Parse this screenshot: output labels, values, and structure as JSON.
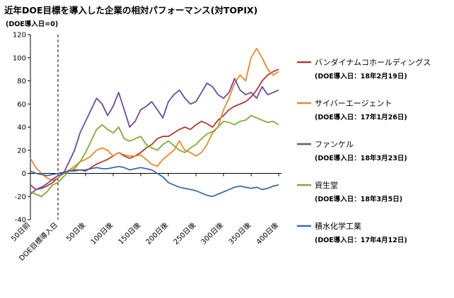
{
  "chart_data": {
    "type": "line",
    "title": "近年DOE目標を導入した企業の相対パフォーマンス(対TOPIX)",
    "ylabel": "(DOE導入日=0)",
    "ylim": [
      -40,
      120
    ],
    "yticks": [
      -40,
      -20,
      0,
      20,
      40,
      60,
      80,
      100,
      120
    ],
    "xlim": [
      -50,
      405
    ],
    "xtick_values": [
      -50,
      0,
      50,
      100,
      150,
      200,
      250,
      300,
      350,
      400
    ],
    "xtick_labels": [
      "50日前",
      "DOE目標導入日",
      "50日後",
      "100日後",
      "150日後",
      "200日後",
      "250日後",
      "300日後",
      "350日後",
      "400日後"
    ],
    "event_line_x": 0,
    "series": [
      {
        "name": "バンダイナムコホールディングス",
        "note": "(DOE導入日：18年2月19日)",
        "color": "#b03a2e",
        "points": [
          [
            -50,
            -10
          ],
          [
            -40,
            -14
          ],
          [
            -30,
            -13
          ],
          [
            -20,
            -11
          ],
          [
            -10,
            -8
          ],
          [
            0,
            -4
          ],
          [
            10,
            0
          ],
          [
            20,
            2
          ],
          [
            30,
            3
          ],
          [
            40,
            3
          ],
          [
            50,
            2
          ],
          [
            60,
            5
          ],
          [
            70,
            8
          ],
          [
            80,
            10
          ],
          [
            90,
            12
          ],
          [
            100,
            15
          ],
          [
            110,
            18
          ],
          [
            120,
            15
          ],
          [
            130,
            13
          ],
          [
            140,
            15
          ],
          [
            150,
            18
          ],
          [
            160,
            22
          ],
          [
            170,
            25
          ],
          [
            180,
            30
          ],
          [
            190,
            32
          ],
          [
            200,
            32
          ],
          [
            210,
            35
          ],
          [
            220,
            38
          ],
          [
            230,
            40
          ],
          [
            240,
            38
          ],
          [
            250,
            42
          ],
          [
            260,
            45
          ],
          [
            270,
            43
          ],
          [
            280,
            40
          ],
          [
            290,
            46
          ],
          [
            300,
            50
          ],
          [
            310,
            55
          ],
          [
            320,
            58
          ],
          [
            330,
            60
          ],
          [
            340,
            62
          ],
          [
            350,
            66
          ],
          [
            360,
            72
          ],
          [
            370,
            80
          ],
          [
            380,
            85
          ],
          [
            390,
            88
          ],
          [
            400,
            90
          ]
        ]
      },
      {
        "name": "サイバーエージェント",
        "note": "(DOE導入日：17年1月26日)",
        "color": "#e8892e",
        "points": [
          [
            -50,
            13
          ],
          [
            -40,
            5
          ],
          [
            -30,
            0
          ],
          [
            -20,
            -4
          ],
          [
            -10,
            -6
          ],
          [
            0,
            -4
          ],
          [
            10,
            0
          ],
          [
            20,
            3
          ],
          [
            30,
            6
          ],
          [
            40,
            10
          ],
          [
            50,
            12
          ],
          [
            60,
            15
          ],
          [
            70,
            20
          ],
          [
            80,
            22
          ],
          [
            90,
            20
          ],
          [
            100,
            15
          ],
          [
            110,
            18
          ],
          [
            120,
            16
          ],
          [
            130,
            15
          ],
          [
            140,
            15
          ],
          [
            150,
            16
          ],
          [
            160,
            12
          ],
          [
            170,
            8
          ],
          [
            180,
            6
          ],
          [
            190,
            12
          ],
          [
            200,
            16
          ],
          [
            210,
            20
          ],
          [
            220,
            28
          ],
          [
            230,
            20
          ],
          [
            240,
            18
          ],
          [
            250,
            15
          ],
          [
            260,
            18
          ],
          [
            270,
            25
          ],
          [
            280,
            35
          ],
          [
            290,
            40
          ],
          [
            300,
            55
          ],
          [
            310,
            65
          ],
          [
            320,
            78
          ],
          [
            330,
            85
          ],
          [
            340,
            80
          ],
          [
            350,
            100
          ],
          [
            360,
            108
          ],
          [
            370,
            100
          ],
          [
            380,
            90
          ],
          [
            390,
            85
          ],
          [
            400,
            88
          ]
        ]
      },
      {
        "name": "ファンケル",
        "note": "(DOE導入日：18年3月23日)",
        "color": "#6b4c9a",
        "points": [
          [
            -50,
            -18
          ],
          [
            -40,
            -14
          ],
          [
            -30,
            -12
          ],
          [
            -20,
            -9
          ],
          [
            -10,
            -5
          ],
          [
            0,
            -2
          ],
          [
            10,
            0
          ],
          [
            20,
            10
          ],
          [
            30,
            20
          ],
          [
            40,
            35
          ],
          [
            50,
            45
          ],
          [
            60,
            55
          ],
          [
            70,
            65
          ],
          [
            80,
            60
          ],
          [
            90,
            50
          ],
          [
            100,
            58
          ],
          [
            110,
            70
          ],
          [
            120,
            55
          ],
          [
            130,
            40
          ],
          [
            140,
            45
          ],
          [
            150,
            55
          ],
          [
            160,
            58
          ],
          [
            170,
            62
          ],
          [
            180,
            55
          ],
          [
            190,
            48
          ],
          [
            200,
            62
          ],
          [
            210,
            68
          ],
          [
            220,
            72
          ],
          [
            230,
            65
          ],
          [
            240,
            60
          ],
          [
            250,
            62
          ],
          [
            260,
            70
          ],
          [
            270,
            78
          ],
          [
            280,
            75
          ],
          [
            290,
            68
          ],
          [
            300,
            65
          ],
          [
            310,
            70
          ],
          [
            320,
            82
          ],
          [
            330,
            72
          ],
          [
            340,
            68
          ],
          [
            350,
            70
          ],
          [
            360,
            65
          ],
          [
            370,
            75
          ],
          [
            380,
            68
          ],
          [
            390,
            70
          ],
          [
            400,
            72
          ]
        ]
      },
      {
        "name": "資生堂",
        "note": "(DOE導入日：18年3月5日)",
        "color": "#86a83a",
        "points": [
          [
            -50,
            -16
          ],
          [
            -40,
            -18
          ],
          [
            -30,
            -20
          ],
          [
            -20,
            -16
          ],
          [
            -10,
            -10
          ],
          [
            0,
            -8
          ],
          [
            10,
            -3
          ],
          [
            20,
            2
          ],
          [
            30,
            4
          ],
          [
            40,
            10
          ],
          [
            50,
            18
          ],
          [
            60,
            28
          ],
          [
            70,
            38
          ],
          [
            80,
            42
          ],
          [
            90,
            38
          ],
          [
            100,
            35
          ],
          [
            110,
            40
          ],
          [
            120,
            30
          ],
          [
            130,
            28
          ],
          [
            140,
            30
          ],
          [
            150,
            32
          ],
          [
            160,
            25
          ],
          [
            170,
            22
          ],
          [
            180,
            20
          ],
          [
            190,
            25
          ],
          [
            200,
            28
          ],
          [
            210,
            24
          ],
          [
            220,
            20
          ],
          [
            230,
            18
          ],
          [
            240,
            22
          ],
          [
            250,
            25
          ],
          [
            260,
            30
          ],
          [
            270,
            34
          ],
          [
            280,
            36
          ],
          [
            290,
            40
          ],
          [
            300,
            45
          ],
          [
            310,
            44
          ],
          [
            320,
            42
          ],
          [
            330,
            45
          ],
          [
            340,
            46
          ],
          [
            350,
            50
          ],
          [
            360,
            48
          ],
          [
            370,
            46
          ],
          [
            380,
            44
          ],
          [
            390,
            45
          ],
          [
            400,
            42
          ]
        ]
      },
      {
        "name": "積水化学工業",
        "note": "(DOE導入日：17年4月12日)",
        "color": "#3c6aa8",
        "points": [
          [
            -50,
            2
          ],
          [
            -40,
            0
          ],
          [
            -30,
            -1
          ],
          [
            -20,
            -2
          ],
          [
            -10,
            -1
          ],
          [
            0,
            0
          ],
          [
            10,
            1
          ],
          [
            20,
            2
          ],
          [
            30,
            2
          ],
          [
            40,
            3
          ],
          [
            50,
            3
          ],
          [
            60,
            4
          ],
          [
            70,
            5
          ],
          [
            80,
            4
          ],
          [
            90,
            4
          ],
          [
            100,
            5
          ],
          [
            110,
            6
          ],
          [
            120,
            5
          ],
          [
            130,
            3
          ],
          [
            140,
            4
          ],
          [
            150,
            5
          ],
          [
            160,
            4
          ],
          [
            170,
            3
          ],
          [
            180,
            0
          ],
          [
            190,
            -3
          ],
          [
            200,
            -8
          ],
          [
            210,
            -10
          ],
          [
            220,
            -12
          ],
          [
            230,
            -13
          ],
          [
            240,
            -14
          ],
          [
            250,
            -15
          ],
          [
            260,
            -17
          ],
          [
            270,
            -19
          ],
          [
            280,
            -20
          ],
          [
            290,
            -18
          ],
          [
            300,
            -16
          ],
          [
            310,
            -14
          ],
          [
            320,
            -12
          ],
          [
            330,
            -11
          ],
          [
            340,
            -12
          ],
          [
            350,
            -13
          ],
          [
            360,
            -12
          ],
          [
            370,
            -14
          ],
          [
            380,
            -13
          ],
          [
            390,
            -11
          ],
          [
            400,
            -10
          ]
        ]
      }
    ]
  }
}
